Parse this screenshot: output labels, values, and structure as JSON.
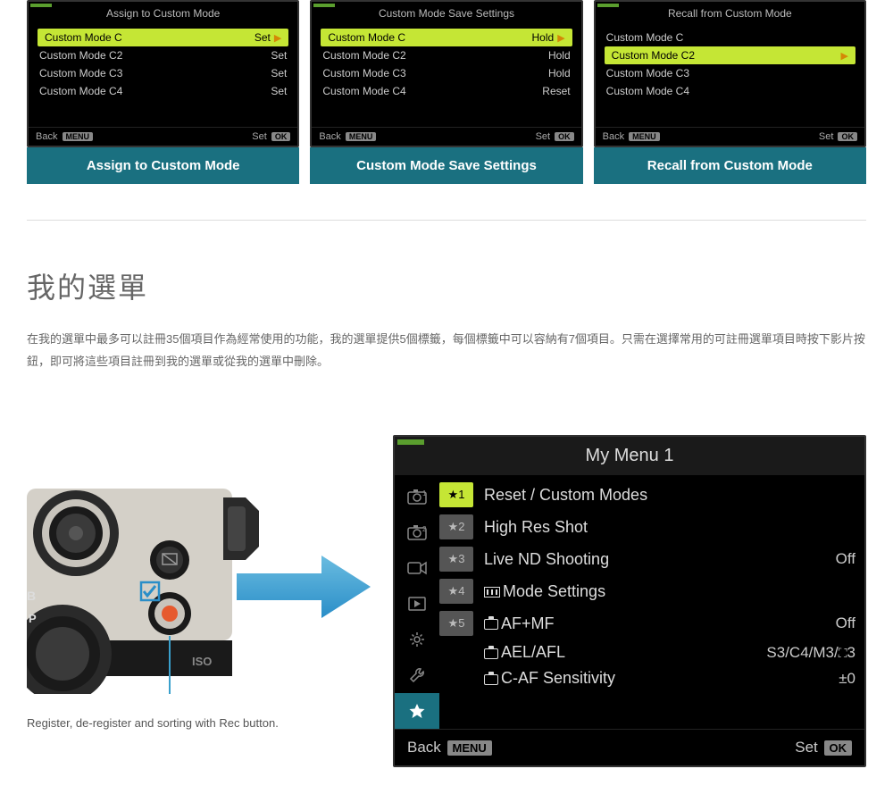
{
  "screens": [
    {
      "header": "Assign to Custom Mode",
      "caption": "Assign to Custom Mode",
      "selectedIndex": 0,
      "items": [
        {
          "label": "Custom Mode C",
          "action": "Set",
          "hasArrow": true
        },
        {
          "label": "Custom Mode C2",
          "action": "Set"
        },
        {
          "label": "Custom Mode C3",
          "action": "Set"
        },
        {
          "label": "Custom Mode C4",
          "action": "Set"
        }
      ],
      "footerLeft": "Back",
      "footerLeftBadge": "MENU",
      "footerRight": "Set",
      "footerRightBadge": "OK"
    },
    {
      "header": "Custom Mode Save Settings",
      "caption": "Custom Mode Save Settings",
      "selectedIndex": 0,
      "items": [
        {
          "label": "Custom Mode C",
          "action": "Hold",
          "hasArrow": true
        },
        {
          "label": "Custom Mode C2",
          "action": "Hold"
        },
        {
          "label": "Custom Mode C3",
          "action": "Hold"
        },
        {
          "label": "Custom Mode C4",
          "action": "Reset"
        }
      ],
      "footerLeft": "Back",
      "footerLeftBadge": "MENU",
      "footerRight": "Set",
      "footerRightBadge": "OK"
    },
    {
      "header": "Recall from Custom Mode",
      "caption": "Recall from Custom Mode",
      "selectedIndex": 1,
      "items": [
        {
          "label": "Custom Mode C",
          "action": ""
        },
        {
          "label": "Custom Mode C2",
          "action": "",
          "hasArrow": true
        },
        {
          "label": "Custom Mode C3",
          "action": ""
        },
        {
          "label": "Custom Mode C4",
          "action": ""
        }
      ],
      "footerLeft": "Back",
      "footerLeftBadge": "MENU",
      "footerRight": "Set",
      "footerRightBadge": "OK"
    }
  ],
  "article": {
    "title": "我的選單",
    "body": "在我的選單中最多可以註冊35個項目作為經常使用的功能，我的選單提供5個標籤，每個標籤中可以容納有7個項目。只需在選擇常用的可註冊選單項目時按下影片按鈕，即可將這些項目註冊到我的選單或從我的選單中刪除。"
  },
  "cameraCaption": "Register, de-register and sorting with Rec button.",
  "myMenu": {
    "title": "My Menu 1",
    "sideTabs": [
      "camera1",
      "camera2",
      "video",
      "play",
      "gear",
      "wrench",
      "star"
    ],
    "activeTab": 6,
    "items": [
      {
        "num": "1",
        "active": true,
        "label": "Reset / Custom Modes",
        "value": ""
      },
      {
        "num": "2",
        "label": "High Res Shot",
        "value": ""
      },
      {
        "num": "3",
        "label": "Live ND Shooting",
        "value": "Off"
      },
      {
        "num": "4",
        "label": "Mode Settings",
        "value": "",
        "prefixIcon": "interval"
      },
      {
        "num": "5",
        "label": "AF+MF",
        "value": "Off",
        "prefixIcon": "camera"
      },
      {
        "num": "",
        "label": "AEL/AFL",
        "value": "S3/C4/M3/",
        "prefixIcon": "camera",
        "valueSuffixIcon": "expand",
        "valueSuffix": "3"
      },
      {
        "num": "",
        "label": "C-AF Sensitivity",
        "value": "±0",
        "prefixIcon": "camera"
      }
    ],
    "footerLeft": "Back",
    "footerLeftBadge": "MENU",
    "footerRight": "Set",
    "footerRightBadge": "OK"
  },
  "colors": {
    "highlight": "#c5e635",
    "captionBg": "#1a7080",
    "arrowBlue": "#3aa0cc"
  }
}
